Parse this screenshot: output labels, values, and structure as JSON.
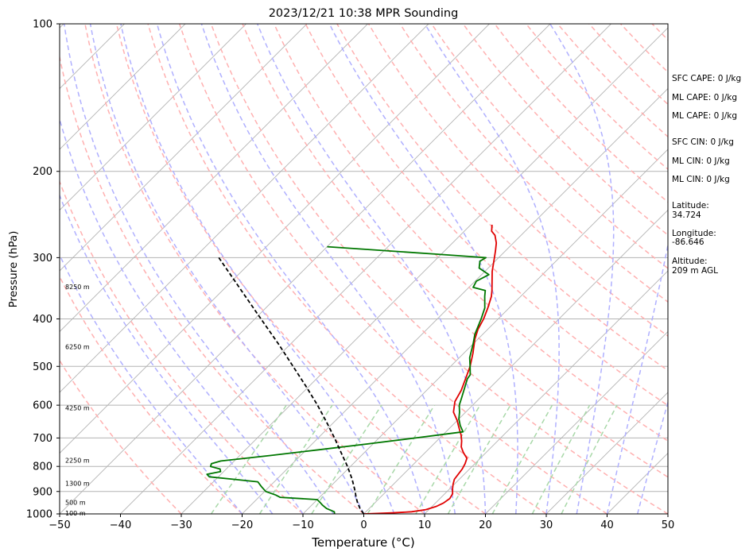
{
  "chart_data": {
    "type": "line",
    "subtype": "skew-t log-p sounding",
    "title": "2023/12/21 10:38 MPR Sounding",
    "xlabel": "Temperature (°C)",
    "ylabel": "Pressure (hPa)",
    "xlim": [
      -50,
      50
    ],
    "ylim": [
      1000,
      100
    ],
    "y_scale": "log",
    "x_ticks": [
      "−50",
      "−40",
      "−30",
      "−20",
      "−10",
      "0",
      "10",
      "20",
      "30",
      "40",
      "50"
    ],
    "y_ticks": [
      "100",
      "200",
      "300",
      "400",
      "500",
      "600",
      "700",
      "800",
      "900",
      "1000"
    ],
    "x_tick_values": [
      -50,
      -40,
      -30,
      -20,
      -10,
      0,
      10,
      20,
      30,
      40,
      50
    ],
    "y_tick_values": [
      100,
      200,
      300,
      400,
      500,
      600,
      700,
      800,
      900,
      1000
    ],
    "grid": true,
    "series": [
      {
        "color": "#e00000",
        "points": [
          [
            1000,
            0.0
          ],
          [
            995,
            4.5
          ],
          [
            990,
            7.5
          ],
          [
            980,
            9.5
          ],
          [
            965,
            10.7
          ],
          [
            950,
            11.3
          ],
          [
            930,
            11.6
          ],
          [
            910,
            11.3
          ],
          [
            890,
            10.5
          ],
          [
            870,
            9.8
          ],
          [
            850,
            9.2
          ],
          [
            830,
            9.0
          ],
          [
            810,
            8.8
          ],
          [
            790,
            8.4
          ],
          [
            770,
            7.8
          ],
          [
            750,
            6.3
          ],
          [
            730,
            5.0
          ],
          [
            710,
            4.1
          ],
          [
            690,
            3.0
          ],
          [
            675,
            2.0
          ],
          [
            660,
            1.0
          ],
          [
            645,
            0.0
          ],
          [
            620,
            -2.0
          ],
          [
            590,
            -3.5
          ],
          [
            560,
            -4.3
          ],
          [
            530,
            -5.5
          ],
          [
            500,
            -6.8
          ],
          [
            470,
            -8.5
          ],
          [
            440,
            -10.5
          ],
          [
            420,
            -11.6
          ],
          [
            400,
            -12.4
          ],
          [
            380,
            -13.5
          ],
          [
            360,
            -14.8
          ],
          [
            350,
            -15.7
          ],
          [
            340,
            -16.7
          ],
          [
            320,
            -18.8
          ],
          [
            300,
            -20.7
          ],
          [
            290,
            -21.7
          ],
          [
            280,
            -22.8
          ],
          [
            270,
            -24.3
          ],
          [
            265,
            -25.5
          ],
          [
            257,
            -26.5
          ]
        ]
      },
      {
        "color": "#007700",
        "points": [
          [
            1000,
            -4.8
          ],
          [
            990,
            -5.2
          ],
          [
            975,
            -7.0
          ],
          [
            960,
            -8.2
          ],
          [
            950,
            -8.9
          ],
          [
            935,
            -10.0
          ],
          [
            925,
            -16.5
          ],
          [
            915,
            -17.6
          ],
          [
            900,
            -19.8
          ],
          [
            880,
            -21.3
          ],
          [
            860,
            -22.7
          ],
          [
            850,
            -27.0
          ],
          [
            840,
            -31.5
          ],
          [
            830,
            -32.3
          ],
          [
            820,
            -30.5
          ],
          [
            810,
            -31.0
          ],
          [
            800,
            -33.0
          ],
          [
            790,
            -33.3
          ],
          [
            780,
            -32.2
          ],
          [
            760,
            -25.0
          ],
          [
            740,
            -18.0
          ],
          [
            720,
            -11.0
          ],
          [
            700,
            -4.0
          ],
          [
            680,
            2.8
          ],
          [
            660,
            1.3
          ],
          [
            640,
            0.0
          ],
          [
            620,
            -1.0
          ],
          [
            600,
            -2.2
          ],
          [
            580,
            -3.0
          ],
          [
            550,
            -4.3
          ],
          [
            530,
            -5.2
          ],
          [
            520,
            -5.4
          ],
          [
            500,
            -6.8
          ],
          [
            480,
            -8.3
          ],
          [
            450,
            -10.0
          ],
          [
            430,
            -11.3
          ],
          [
            400,
            -12.8
          ],
          [
            380,
            -14.0
          ],
          [
            360,
            -15.9
          ],
          [
            350,
            -16.8
          ],
          [
            345,
            -19.3
          ],
          [
            335,
            -19.8
          ],
          [
            325,
            -18.8
          ],
          [
            315,
            -21.5
          ],
          [
            305,
            -22.5
          ],
          [
            300,
            -22.1
          ],
          [
            295,
            -31.0
          ],
          [
            285,
            -50.0
          ]
        ]
      },
      {
        "color": "#000000",
        "points": [
          [
            1000,
            0.0
          ],
          [
            975,
            -1.5
          ],
          [
            950,
            -2.8
          ],
          [
            925,
            -4.0
          ],
          [
            900,
            -5.1
          ],
          [
            850,
            -7.6
          ],
          [
            800,
            -10.5
          ],
          [
            750,
            -13.8
          ],
          [
            700,
            -17.3
          ],
          [
            650,
            -21.2
          ],
          [
            600,
            -25.5
          ],
          [
            550,
            -30.4
          ],
          [
            500,
            -35.9
          ],
          [
            450,
            -42.0
          ],
          [
            400,
            -49.0
          ],
          [
            350,
            -56.9
          ],
          [
            300,
            -66.0
          ]
        ]
      }
    ],
    "height_labels": [
      {
        "text": "100 m",
        "p": 996
      },
      {
        "text": "500 m",
        "p": 948
      },
      {
        "text": "1300 m",
        "p": 866
      },
      {
        "text": "2250 m",
        "p": 777
      },
      {
        "text": "4250 m",
        "p": 608
      },
      {
        "text": "6250 m",
        "p": 456
      },
      {
        "text": "8250 m",
        "p": 344
      }
    ],
    "annotations": [
      "SFC CAPE: 0 J/kg",
      "ML CAPE: 0 J/kg",
      "ML CAPE: 0 J/kg",
      "SFC CIN: 0 J/kg",
      "ML CIN: 0 J/kg",
      "ML CIN: 0 J/kg",
      "Latitude:",
      "34.724",
      "Longitude:",
      "-86.646",
      "Altitude:",
      "209 m AGL"
    ],
    "background_lines": {
      "isotherm_color": "#b3b3b3",
      "isobar_color": "#b3b3b3",
      "dry_adiabat_color": "#ffb0b0",
      "moist_adiabat_color": "#b0b0ff",
      "mixing_ratio_color": "#a8d8a8"
    }
  }
}
